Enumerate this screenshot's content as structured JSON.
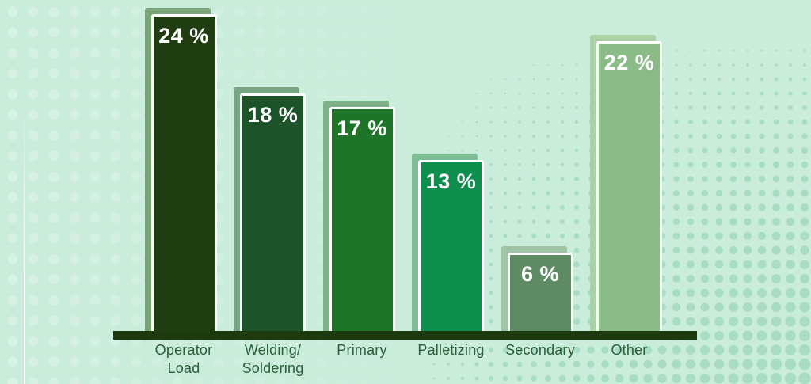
{
  "chart_data": {
    "type": "bar",
    "title": "",
    "xlabel": "",
    "ylabel": "",
    "unit": "%",
    "ylim": [
      0,
      25
    ],
    "grid": false,
    "legend": false,
    "categories": [
      "Operator\nLoad",
      "Welding/\nSoldering",
      "Primary",
      "Palletizing",
      "Secondary",
      "Other"
    ],
    "values": [
      24,
      18,
      17,
      13,
      6,
      22
    ],
    "value_labels": [
      "24 %",
      "18 %",
      "17 %",
      "13 %",
      "6 %",
      "22 %"
    ],
    "bar_colors": [
      "#203d11",
      "#1d5329",
      "#1e7529",
      "#0e8f4e",
      "#5e8b63",
      "#8bbc88"
    ],
    "bar_shadow_colors": [
      "#79a478",
      "#79a483",
      "#7eb288",
      "#7fbd97",
      "#a0c5a5",
      "#abd2a6"
    ],
    "value_label_color": "#ffffff",
    "category_label_color": "#2b5e3a",
    "axis_color": "#1d3a0e",
    "background_color": "#c9ecdb"
  },
  "background": {
    "left_dot_color": "#d8f2e4",
    "halftone_dot_color": "#a8dcc3",
    "accent_line_color": "#ffffff"
  }
}
